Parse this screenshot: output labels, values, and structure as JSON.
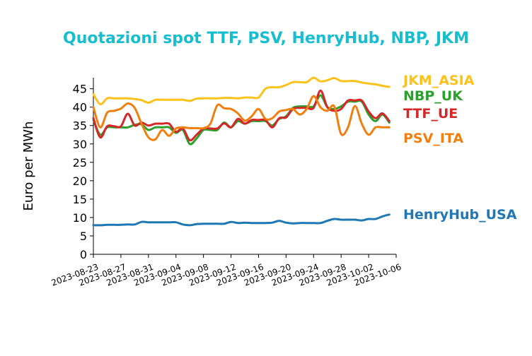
{
  "chart_data": {
    "type": "line",
    "title": "Quotazioni spot TTF, PSV, HenryHub, NBP, JKM",
    "xlabel": "",
    "ylabel": "Euro per MWh",
    "ylim": [
      0,
      48
    ],
    "yticks": [
      0,
      5,
      10,
      15,
      20,
      25,
      30,
      35,
      40,
      45
    ],
    "x_start": "2023-08-23",
    "x_end": "2023-10-06",
    "xticks": [
      "2023-08-23",
      "2023-08-27",
      "2023-08-31",
      "2023-09-04",
      "2023-09-08",
      "2023-09-12",
      "2023-09-16",
      "2023-09-20",
      "2023-09-24",
      "2023-09-28",
      "2023-10-02",
      "2023-10-06"
    ],
    "grid": false,
    "legend": "inline labels at right end of lines",
    "series": [
      {
        "name": "JKM_ASIA",
        "color": "#fcc21b",
        "x": [
          "2023-08-23",
          "2023-08-24",
          "2023-08-25",
          "2023-08-26",
          "2023-08-27",
          "2023-08-28",
          "2023-08-29",
          "2023-08-30",
          "2023-08-31",
          "2023-09-01",
          "2023-09-02",
          "2023-09-03",
          "2023-09-04",
          "2023-09-05",
          "2023-09-06",
          "2023-09-07",
          "2023-09-08",
          "2023-09-09",
          "2023-09-10",
          "2023-09-11",
          "2023-09-12",
          "2023-09-13",
          "2023-09-14",
          "2023-09-15",
          "2023-09-16",
          "2023-09-17",
          "2023-09-18",
          "2023-09-19",
          "2023-09-20",
          "2023-09-21",
          "2023-09-22",
          "2023-09-23",
          "2023-09-24",
          "2023-09-25",
          "2023-09-26",
          "2023-09-27",
          "2023-09-28",
          "2023-09-29",
          "2023-09-30",
          "2023-10-01",
          "2023-10-02",
          "2023-10-03",
          "2023-10-04",
          "2023-10-05"
        ],
        "y": [
          43.5,
          40.8,
          42.4,
          42.4,
          42.4,
          42.4,
          42.2,
          41.9,
          41.2,
          42.0,
          42.0,
          42.0,
          42.0,
          42.0,
          41.7,
          42.3,
          42.4,
          42.4,
          42.4,
          42.5,
          42.5,
          42.4,
          42.6,
          42.6,
          42.6,
          45.0,
          45.4,
          45.4,
          46.0,
          46.8,
          46.8,
          46.8,
          48.0,
          47.0,
          47.3,
          47.9,
          47.1,
          47.1,
          47.1,
          46.7,
          46.4,
          46.2,
          45.8,
          45.5
        ]
      },
      {
        "name": "NBP_UK",
        "color": "#2ca02c",
        "x": [
          "2023-08-23",
          "2023-08-24",
          "2023-08-25",
          "2023-08-26",
          "2023-08-27",
          "2023-08-28",
          "2023-08-29",
          "2023-08-30",
          "2023-08-31",
          "2023-09-01",
          "2023-09-02",
          "2023-09-03",
          "2023-09-04",
          "2023-09-05",
          "2023-09-06",
          "2023-09-07",
          "2023-09-08",
          "2023-09-09",
          "2023-09-10",
          "2023-09-11",
          "2023-09-12",
          "2023-09-13",
          "2023-09-14",
          "2023-09-15",
          "2023-09-16",
          "2023-09-17",
          "2023-09-18",
          "2023-09-19",
          "2023-09-20",
          "2023-09-21",
          "2023-09-22",
          "2023-09-23",
          "2023-09-24",
          "2023-09-25",
          "2023-09-26",
          "2023-09-27",
          "2023-09-28",
          "2023-09-29",
          "2023-09-30",
          "2023-10-01",
          "2023-10-02",
          "2023-10-03",
          "2023-10-04",
          "2023-10-05"
        ],
        "y": [
          36.5,
          32.5,
          34.5,
          34.5,
          34.5,
          34.5,
          35.2,
          35.3,
          33.8,
          34.5,
          34.5,
          34.5,
          33.0,
          33.8,
          30.0,
          31.5,
          33.8,
          33.8,
          33.8,
          35.8,
          34.5,
          36.2,
          35.5,
          36.2,
          36.2,
          36.2,
          35.0,
          36.8,
          37.5,
          39.8,
          40.2,
          40.2,
          40.2,
          43.2,
          40.0,
          39.5,
          40.2,
          41.5,
          41.5,
          41.5,
          38.0,
          36.2,
          38.0,
          35.8
        ]
      },
      {
        "name": "TTF_UE",
        "color": "#d62728",
        "x": [
          "2023-08-23",
          "2023-08-24",
          "2023-08-25",
          "2023-08-26",
          "2023-08-27",
          "2023-08-28",
          "2023-08-29",
          "2023-08-30",
          "2023-08-31",
          "2023-09-01",
          "2023-09-02",
          "2023-09-03",
          "2023-09-04",
          "2023-09-05",
          "2023-09-06",
          "2023-09-07",
          "2023-09-08",
          "2023-09-09",
          "2023-09-10",
          "2023-09-11",
          "2023-09-12",
          "2023-09-13",
          "2023-09-14",
          "2023-09-15",
          "2023-09-16",
          "2023-09-17",
          "2023-09-18",
          "2023-09-19",
          "2023-09-20",
          "2023-09-21",
          "2023-09-22",
          "2023-09-23",
          "2023-09-24",
          "2023-09-25",
          "2023-09-26",
          "2023-09-27",
          "2023-09-28",
          "2023-09-29",
          "2023-09-30",
          "2023-10-01",
          "2023-10-02",
          "2023-10-03",
          "2023-10-04",
          "2023-10-05"
        ],
        "y": [
          37.0,
          31.8,
          34.8,
          34.8,
          34.8,
          38.2,
          35.0,
          35.8,
          35.0,
          35.5,
          35.5,
          35.5,
          33.3,
          34.2,
          31.0,
          32.5,
          34.2,
          34.2,
          34.2,
          35.6,
          34.5,
          36.8,
          35.5,
          36.5,
          36.5,
          36.5,
          34.5,
          37.0,
          37.2,
          39.5,
          39.8,
          39.8,
          39.8,
          44.5,
          40.0,
          39.0,
          39.5,
          41.8,
          41.8,
          41.8,
          38.8,
          37.0,
          38.3,
          36.2
        ]
      },
      {
        "name": "PSV_ITA",
        "color": "#f17f0e",
        "x": [
          "2023-08-23",
          "2023-08-24",
          "2023-08-25",
          "2023-08-26",
          "2023-08-27",
          "2023-08-28",
          "2023-08-29",
          "2023-08-30",
          "2023-08-31",
          "2023-09-01",
          "2023-09-02",
          "2023-09-03",
          "2023-09-04",
          "2023-09-05",
          "2023-09-06",
          "2023-09-07",
          "2023-09-08",
          "2023-09-09",
          "2023-09-10",
          "2023-09-11",
          "2023-09-12",
          "2023-09-13",
          "2023-09-14",
          "2023-09-15",
          "2023-09-16",
          "2023-09-17",
          "2023-09-18",
          "2023-09-19",
          "2023-09-20",
          "2023-09-21",
          "2023-09-22",
          "2023-09-23",
          "2023-09-24",
          "2023-09-25",
          "2023-09-26",
          "2023-09-27",
          "2023-09-28",
          "2023-09-29",
          "2023-09-30",
          "2023-10-01",
          "2023-10-02",
          "2023-10-03",
          "2023-10-04",
          "2023-10-05"
        ],
        "y": [
          40.0,
          34.5,
          38.5,
          39.0,
          39.6,
          41.0,
          39.8,
          35.5,
          31.8,
          31.2,
          33.8,
          32.2,
          34.2,
          34.5,
          34.3,
          34.3,
          34.3,
          35.5,
          40.5,
          39.7,
          39.5,
          38.3,
          36.3,
          37.5,
          39.5,
          36.8,
          37.0,
          38.8,
          39.2,
          39.5,
          38.0,
          39.5,
          43.0,
          40.0,
          39.0,
          40.2,
          32.7,
          34.5,
          40.3,
          35.5,
          32.5,
          34.5,
          34.5,
          34.5
        ]
      },
      {
        "name": "HenryHub_USA",
        "color": "#1f77b4",
        "x": [
          "2023-08-23",
          "2023-08-24",
          "2023-08-25",
          "2023-08-26",
          "2023-08-27",
          "2023-08-28",
          "2023-08-29",
          "2023-08-30",
          "2023-08-31",
          "2023-09-01",
          "2023-09-02",
          "2023-09-03",
          "2023-09-04",
          "2023-09-05",
          "2023-09-06",
          "2023-09-07",
          "2023-09-08",
          "2023-09-09",
          "2023-09-10",
          "2023-09-11",
          "2023-09-12",
          "2023-09-13",
          "2023-09-14",
          "2023-09-15",
          "2023-09-16",
          "2023-09-17",
          "2023-09-18",
          "2023-09-19",
          "2023-09-20",
          "2023-09-21",
          "2023-09-22",
          "2023-09-23",
          "2023-09-24",
          "2023-09-25",
          "2023-09-26",
          "2023-09-27",
          "2023-09-28",
          "2023-09-29",
          "2023-09-30",
          "2023-10-01",
          "2023-10-02",
          "2023-10-03",
          "2023-10-04",
          "2023-10-05"
        ],
        "y": [
          7.9,
          7.9,
          8.0,
          8.0,
          8.0,
          8.1,
          8.1,
          8.8,
          8.7,
          8.7,
          8.7,
          8.7,
          8.7,
          8.1,
          7.9,
          8.2,
          8.3,
          8.3,
          8.3,
          8.3,
          8.8,
          8.5,
          8.6,
          8.5,
          8.5,
          8.5,
          8.6,
          9.1,
          8.6,
          8.4,
          8.5,
          8.5,
          8.5,
          8.5,
          9.1,
          9.6,
          9.4,
          9.4,
          9.4,
          9.2,
          9.6,
          9.6,
          10.3,
          10.8
        ]
      }
    ]
  }
}
